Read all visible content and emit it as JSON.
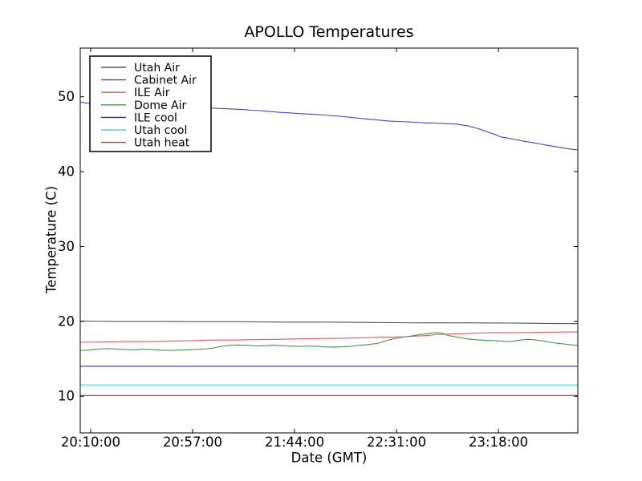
{
  "title": "APOLLO Temperatures",
  "chart_data": {
    "type": "line",
    "title": "APOLLO Temperatures",
    "xlabel": "Date (GMT)",
    "ylabel": "Temperature (C)",
    "x_unit": "minutes since 20:10:00 GMT",
    "x_range": [
      -4.8,
      224.6
    ],
    "y_range": [
      5.1,
      56.5
    ],
    "y_ticks": [
      10,
      20,
      30,
      40,
      50
    ],
    "x_ticks": [
      {
        "m": 0,
        "label": "20:10:00"
      },
      {
        "m": 47,
        "label": "20:57:00"
      },
      {
        "m": 94,
        "label": "21:44:00"
      },
      {
        "m": 141,
        "label": "22:31:00"
      },
      {
        "m": 188,
        "label": "23:18:00"
      }
    ],
    "grid": false,
    "legend_position": "upper left",
    "series": [
      {
        "name": "Utah Air",
        "color": "#555555",
        "points": [
          [
            -4.8,
            20.05
          ],
          [
            10,
            20.0
          ],
          [
            30,
            20.0
          ],
          [
            50,
            19.95
          ],
          [
            70,
            19.95
          ],
          [
            90,
            19.9
          ],
          [
            110,
            19.9
          ],
          [
            130,
            19.85
          ],
          [
            150,
            19.8
          ],
          [
            170,
            19.8
          ],
          [
            190,
            19.78
          ],
          [
            210,
            19.73
          ],
          [
            224.6,
            19.7
          ]
        ]
      },
      {
        "name": "Cabinet Air",
        "color": "#4646cc",
        "points": [
          [
            -4.8,
            49.3
          ],
          [
            -3,
            49.2
          ],
          [
            -1,
            49.1
          ],
          [
            0,
            49.15
          ],
          [
            2,
            49.25
          ],
          [
            5,
            49.3
          ],
          [
            10,
            49.2
          ],
          [
            15,
            49.1
          ],
          [
            20,
            49.0
          ],
          [
            25,
            48.95
          ],
          [
            30,
            48.85
          ],
          [
            35,
            48.75
          ],
          [
            40,
            48.65
          ],
          [
            45,
            48.6
          ],
          [
            50,
            48.55
          ],
          [
            55,
            48.5
          ],
          [
            58,
            48.45
          ],
          [
            62,
            48.4
          ],
          [
            66,
            48.35
          ],
          [
            70,
            48.3
          ],
          [
            74,
            48.2
          ],
          [
            78,
            48.15
          ],
          [
            80,
            48.1
          ],
          [
            84,
            48.0
          ],
          [
            88,
            47.9
          ],
          [
            92,
            47.85
          ],
          [
            96,
            47.75
          ],
          [
            100,
            47.7
          ],
          [
            105,
            47.6
          ],
          [
            110,
            47.5
          ],
          [
            115,
            47.4
          ],
          [
            120,
            47.25
          ],
          [
            125,
            47.1
          ],
          [
            130,
            46.95
          ],
          [
            134,
            46.85
          ],
          [
            138,
            46.75
          ],
          [
            142,
            46.7
          ],
          [
            146,
            46.65
          ],
          [
            150,
            46.6
          ],
          [
            154,
            46.5
          ],
          [
            158,
            46.5
          ],
          [
            162,
            46.45
          ],
          [
            166,
            46.4
          ],
          [
            170,
            46.3
          ],
          [
            174,
            46.1
          ],
          [
            178,
            45.8
          ],
          [
            181,
            45.5
          ],
          [
            184,
            45.2
          ],
          [
            187,
            44.9
          ],
          [
            189,
            44.65
          ],
          [
            192,
            44.5
          ],
          [
            195,
            44.35
          ],
          [
            198,
            44.15
          ],
          [
            201,
            44.0
          ],
          [
            204,
            43.85
          ],
          [
            207,
            43.7
          ],
          [
            210,
            43.55
          ],
          [
            213,
            43.4
          ],
          [
            216,
            43.25
          ],
          [
            219,
            43.1
          ],
          [
            221.5,
            43.0
          ],
          [
            224.6,
            42.9
          ]
        ]
      },
      {
        "name": "ILE Air",
        "color": "#e05c5c",
        "points": [
          [
            -4.8,
            17.2
          ],
          [
            5,
            17.25
          ],
          [
            15,
            17.3
          ],
          [
            25,
            17.3
          ],
          [
            35,
            17.35
          ],
          [
            45,
            17.4
          ],
          [
            55,
            17.5
          ],
          [
            65,
            17.5
          ],
          [
            75,
            17.55
          ],
          [
            85,
            17.6
          ],
          [
            95,
            17.65
          ],
          [
            105,
            17.7
          ],
          [
            115,
            17.75
          ],
          [
            125,
            17.8
          ],
          [
            135,
            17.9
          ],
          [
            145,
            17.95
          ],
          [
            155,
            18.1
          ],
          [
            160,
            18.25
          ],
          [
            165,
            18.3
          ],
          [
            170,
            18.35
          ],
          [
            175,
            18.4
          ],
          [
            180,
            18.45
          ],
          [
            190,
            18.5
          ],
          [
            200,
            18.5
          ],
          [
            210,
            18.55
          ],
          [
            224.6,
            18.6
          ]
        ]
      },
      {
        "name": "Dome Air",
        "color": "#44984c",
        "points": [
          [
            -4.8,
            16.1
          ],
          [
            0,
            16.2
          ],
          [
            4,
            16.3
          ],
          [
            8,
            16.35
          ],
          [
            12,
            16.3
          ],
          [
            16,
            16.25
          ],
          [
            20,
            16.2
          ],
          [
            24,
            16.3
          ],
          [
            28,
            16.25
          ],
          [
            32,
            16.15
          ],
          [
            36,
            16.1
          ],
          [
            40,
            16.15
          ],
          [
            44,
            16.2
          ],
          [
            48,
            16.25
          ],
          [
            52,
            16.3
          ],
          [
            56,
            16.4
          ],
          [
            60,
            16.65
          ],
          [
            64,
            16.8
          ],
          [
            68,
            16.85
          ],
          [
            72,
            16.8
          ],
          [
            76,
            16.7
          ],
          [
            80,
            16.75
          ],
          [
            84,
            16.8
          ],
          [
            88,
            16.75
          ],
          [
            92,
            16.7
          ],
          [
            96,
            16.65
          ],
          [
            100,
            16.7
          ],
          [
            104,
            16.65
          ],
          [
            108,
            16.6
          ],
          [
            112,
            16.55
          ],
          [
            116,
            16.6
          ],
          [
            120,
            16.65
          ],
          [
            124,
            16.8
          ],
          [
            128,
            16.9
          ],
          [
            132,
            17.05
          ],
          [
            136,
            17.4
          ],
          [
            140,
            17.7
          ],
          [
            144,
            17.9
          ],
          [
            148,
            18.05
          ],
          [
            152,
            18.25
          ],
          [
            155,
            18.35
          ],
          [
            157.5,
            18.45
          ],
          [
            159.5,
            18.5
          ],
          [
            161.5,
            18.45
          ],
          [
            163,
            18.3
          ],
          [
            165,
            18.1
          ],
          [
            168,
            17.95
          ],
          [
            171,
            17.8
          ],
          [
            174,
            17.65
          ],
          [
            177,
            17.55
          ],
          [
            180,
            17.5
          ],
          [
            184,
            17.45
          ],
          [
            188,
            17.4
          ],
          [
            192,
            17.3
          ],
          [
            195,
            17.35
          ],
          [
            198,
            17.5
          ],
          [
            201,
            17.6
          ],
          [
            204,
            17.55
          ],
          [
            207,
            17.45
          ],
          [
            210,
            17.3
          ],
          [
            213,
            17.15
          ],
          [
            216,
            17.05
          ],
          [
            219,
            16.95
          ],
          [
            222,
            16.85
          ],
          [
            224.6,
            16.8
          ]
        ]
      },
      {
        "name": "ILE cool",
        "color": "#2f2f74",
        "points": [
          [
            -4.8,
            14.0
          ],
          [
            224.6,
            14.0
          ]
        ]
      },
      {
        "name": "Utah cool",
        "color": "#44dddd",
        "points": [
          [
            -4.8,
            11.5
          ],
          [
            224.6,
            11.5
          ]
        ]
      },
      {
        "name": "Utah heat",
        "color": "#cc3333",
        "points": [
          [
            -4.8,
            10.1
          ],
          [
            224.6,
            10.1
          ]
        ]
      }
    ]
  }
}
